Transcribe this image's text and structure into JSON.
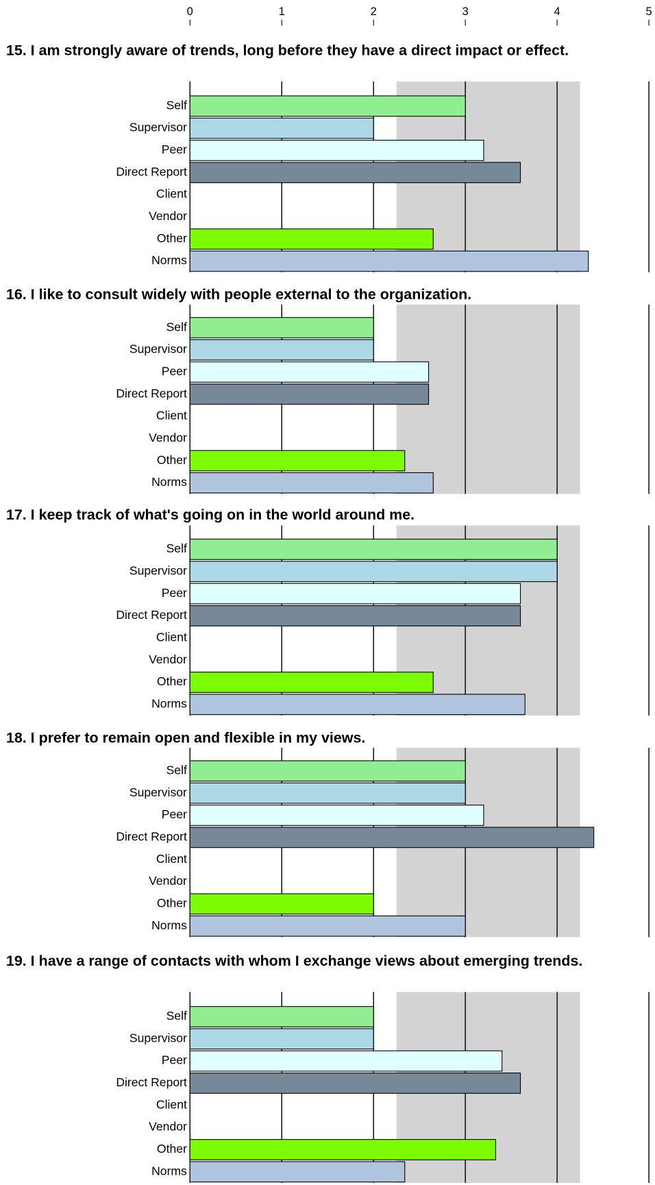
{
  "chart_data": [
    {
      "type": "bar",
      "title": "15. I am strongly aware of trends, long before they have a direct impact or effect.",
      "categories": [
        "Self",
        "Supervisor",
        "Peer",
        "Direct Report",
        "Client",
        "Vendor",
        "Other",
        "Norms"
      ],
      "values": [
        3,
        2,
        3.2,
        3.6,
        null,
        null,
        2.65,
        4.34
      ],
      "colors": [
        "#90ee90",
        "#add8e6",
        "#e0ffff",
        "#778899",
        "#ffffff",
        "#ffffff",
        "#7cfc00",
        "#b0c4de"
      ],
      "band": [
        2.25,
        4.25
      ],
      "band_color": "#d3d3d3",
      "xlim": [
        0,
        5
      ],
      "xticks": [
        0,
        1,
        2,
        3,
        4,
        5
      ],
      "grid": true
    },
    {
      "type": "bar",
      "title": "16. I like to consult widely with people external to the organization.",
      "categories": [
        "Self",
        "Supervisor",
        "Peer",
        "Direct Report",
        "Client",
        "Vendor",
        "Other",
        "Norms"
      ],
      "values": [
        2,
        2,
        2.6,
        2.6,
        null,
        null,
        2.34,
        2.65
      ],
      "colors": [
        "#90ee90",
        "#add8e6",
        "#e0ffff",
        "#778899",
        "#ffffff",
        "#ffffff",
        "#7cfc00",
        "#b0c4de"
      ],
      "band": [
        2.25,
        4.25
      ],
      "band_color": "#d3d3d3",
      "xlim": [
        0,
        5
      ],
      "xticks": [
        0,
        1,
        2,
        3,
        4,
        5
      ],
      "grid": true
    },
    {
      "type": "bar",
      "title": "17. I keep track of what's going on in the world around me.",
      "categories": [
        "Self",
        "Supervisor",
        "Peer",
        "Direct Report",
        "Client",
        "Vendor",
        "Other",
        "Norms"
      ],
      "values": [
        4,
        4,
        3.6,
        3.6,
        null,
        null,
        2.65,
        3.65
      ],
      "colors": [
        "#90ee90",
        "#add8e6",
        "#e0ffff",
        "#778899",
        "#ffffff",
        "#ffffff",
        "#7cfc00",
        "#b0c4de"
      ],
      "band": [
        2.25,
        4.25
      ],
      "band_color": "#d3d3d3",
      "xlim": [
        0,
        5
      ],
      "xticks": [
        0,
        1,
        2,
        3,
        4,
        5
      ],
      "grid": true
    },
    {
      "type": "bar",
      "title": "18. I prefer to remain open and flexible in my views.",
      "categories": [
        "Self",
        "Supervisor",
        "Peer",
        "Direct Report",
        "Client",
        "Vendor",
        "Other",
        "Norms"
      ],
      "values": [
        3,
        3,
        3.2,
        4.4,
        null,
        null,
        2,
        3
      ],
      "colors": [
        "#90ee90",
        "#add8e6",
        "#e0ffff",
        "#778899",
        "#ffffff",
        "#ffffff",
        "#7cfc00",
        "#b0c4de"
      ],
      "band": [
        2.25,
        4.25
      ],
      "band_color": "#d3d3d3",
      "xlim": [
        0,
        5
      ],
      "xticks": [
        0,
        1,
        2,
        3,
        4,
        5
      ],
      "grid": true
    },
    {
      "type": "bar",
      "title": "19. I have a range of contacts with whom I exchange views about emerging trends.",
      "categories": [
        "Self",
        "Supervisor",
        "Peer",
        "Direct Report",
        "Client",
        "Vendor",
        "Other",
        "Norms"
      ],
      "values": [
        2,
        2,
        3.4,
        3.6,
        null,
        null,
        3.33,
        2.34
      ],
      "colors": [
        "#90ee90",
        "#add8e6",
        "#e0ffff",
        "#778899",
        "#ffffff",
        "#ffffff",
        "#7cfc00",
        "#b0c4de"
      ],
      "band": [
        2.25,
        4.25
      ],
      "band_color": "#d3d3d3",
      "xlim": [
        0,
        5
      ],
      "xticks": [
        0,
        1,
        2,
        3,
        4,
        5
      ],
      "grid": true
    }
  ]
}
